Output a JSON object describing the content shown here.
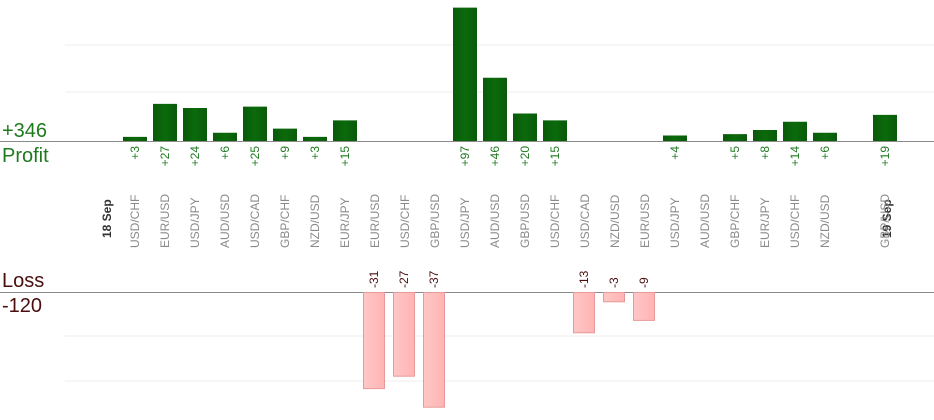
{
  "summary": {
    "profit_total": "+346",
    "profit_label": "Profit",
    "loss_label": "Loss",
    "loss_total": "-120"
  },
  "colors": {
    "profit_bar": "#0b6a0b",
    "profit_text": "#1f7a1f",
    "loss_bar": "#ffb3b3",
    "loss_text": "#4a0e0e",
    "label_text": "#8a8a8a"
  },
  "chart_data": {
    "type": "bar",
    "title": "",
    "xlabel": "",
    "ylabel": "",
    "grid": true,
    "dates": [
      {
        "label": "18 Sep",
        "before_index": 0
      },
      {
        "label": "19 Sep",
        "before_index": 26
      }
    ],
    "entries": [
      {
        "pair": "USD/CHF",
        "profit": 3,
        "profit_label": "+3",
        "loss": null,
        "loss_label": ""
      },
      {
        "pair": "EUR/USD",
        "profit": 27,
        "profit_label": "+27",
        "loss": null,
        "loss_label": ""
      },
      {
        "pair": "USD/JPY",
        "profit": 24,
        "profit_label": "+24",
        "loss": null,
        "loss_label": ""
      },
      {
        "pair": "AUD/USD",
        "profit": 6,
        "profit_label": "+6",
        "loss": null,
        "loss_label": ""
      },
      {
        "pair": "USD/CAD",
        "profit": 25,
        "profit_label": "+25",
        "loss": null,
        "loss_label": ""
      },
      {
        "pair": "GBP/CHF",
        "profit": 9,
        "profit_label": "+9",
        "loss": null,
        "loss_label": ""
      },
      {
        "pair": "NZD/USD",
        "profit": 3,
        "profit_label": "+3",
        "loss": null,
        "loss_label": ""
      },
      {
        "pair": "EUR/JPY",
        "profit": 15,
        "profit_label": "+15",
        "loss": null,
        "loss_label": ""
      },
      {
        "pair": "EUR/USD",
        "profit": null,
        "profit_label": "",
        "loss": -31,
        "loss_label": "-31"
      },
      {
        "pair": "USD/CHF",
        "profit": null,
        "profit_label": "",
        "loss": -27,
        "loss_label": "-27"
      },
      {
        "pair": "GBP/USD",
        "profit": null,
        "profit_label": "",
        "loss": -37,
        "loss_label": "-37"
      },
      {
        "pair": "USD/JPY",
        "profit": 97,
        "profit_label": "+97",
        "loss": null,
        "loss_label": ""
      },
      {
        "pair": "AUD/USD",
        "profit": 46,
        "profit_label": "+46",
        "loss": null,
        "loss_label": ""
      },
      {
        "pair": "GBP/USD",
        "profit": 20,
        "profit_label": "+20",
        "loss": null,
        "loss_label": ""
      },
      {
        "pair": "USD/CHF",
        "profit": 15,
        "profit_label": "+15",
        "loss": null,
        "loss_label": ""
      },
      {
        "pair": "USD/CAD",
        "profit": null,
        "profit_label": "",
        "loss": -13,
        "loss_label": "-13"
      },
      {
        "pair": "NZD/USD",
        "profit": null,
        "profit_label": "",
        "loss": -3,
        "loss_label": "-3"
      },
      {
        "pair": "EUR/USD",
        "profit": null,
        "profit_label": "",
        "loss": -9,
        "loss_label": "-9"
      },
      {
        "pair": "USD/JPY",
        "profit": 4,
        "profit_label": "+4",
        "loss": null,
        "loss_label": ""
      },
      {
        "pair": "AUD/USD",
        "profit": null,
        "profit_label": "",
        "loss": null,
        "loss_label": ""
      },
      {
        "pair": "GBP/CHF",
        "profit": 5,
        "profit_label": "+5",
        "loss": null,
        "loss_label": ""
      },
      {
        "pair": "EUR/JPY",
        "profit": 8,
        "profit_label": "+8",
        "loss": null,
        "loss_label": ""
      },
      {
        "pair": "USD/CHF",
        "profit": 14,
        "profit_label": "+14",
        "loss": null,
        "loss_label": ""
      },
      {
        "pair": "NZD/USD",
        "profit": 6,
        "profit_label": "+6",
        "loss": null,
        "loss_label": ""
      },
      {
        "pair": "GBP/USD",
        "profit": 19,
        "profit_label": "+19",
        "loss": null,
        "loss_label": ""
      }
    ]
  }
}
